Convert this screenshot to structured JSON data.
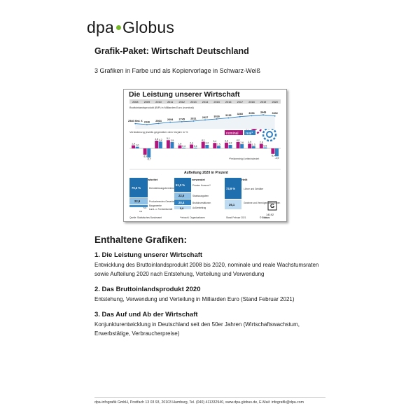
{
  "brand": {
    "part1": "dpa",
    "part2": "Globus"
  },
  "header": {
    "title": "Grafik-Paket: Wirtschaft Deutschland",
    "subtitle": "3 Grafiken in Farbe und als Kopiervorlage in Schwarz-Weiß"
  },
  "preview": {
    "title": "Die Leistung unserer Wirtschaft",
    "gdp_label": "Bruttoinlandsprodukt (BIP) in Milliarden Euro (nominal)",
    "change_label": "Veränderung jeweils gegenüber dem Vorjahr in %",
    "legend_nominal": "nominal",
    "legend_real": "real*",
    "note": "*Preisbereinigt, kettenindexiert",
    "section_title": "Aufteilung 2020 in Prozent",
    "col1_head": "Dort erarbeitet",
    "col2_head": "Dafür verwendet",
    "col3_head": "So verteilt",
    "source": "Quelle: Statistisches Bundesamt",
    "footnote": "**einschl. Organisationen",
    "stand": "Stand Februar 2021",
    "credit": "© Globus",
    "code": "14192",
    "col1": [
      {
        "value": "70,3 %",
        "label": "Dienstleistungsbereiche"
      },
      {
        "value": "22,9",
        "label": "Produzierendes Gewerbe"
      },
      {
        "value": "5,9",
        "label": "Baugewerbe"
      },
      {
        "value": "0,9",
        "label": "Land- u. Forstwirtschaft"
      }
    ],
    "col2": [
      {
        "value": "51,3 %",
        "label": "Privater Konsum**"
      },
      {
        "value": "22,5",
        "label": "Staatsausgaben"
      },
      {
        "value": "20,4",
        "label": "Bruttoinvestitionen"
      },
      {
        "value": "5,8",
        "label": "Außenbeitrag"
      }
    ],
    "col3": [
      {
        "value": "73,9 %",
        "label": "Löhne und Gehälter"
      },
      {
        "value": "26,1",
        "label": "Gewinne und Vermögenseinkommen"
      }
    ]
  },
  "chart_data": {
    "type": "bar",
    "categories": [
      "2008",
      "2009",
      "2010",
      "2011",
      "2012",
      "2013",
      "2014",
      "2015",
      "2016",
      "2017",
      "2018",
      "2019",
      "2020"
    ],
    "gdp_nominal_bn": [
      2546,
      2446,
      2564,
      2694,
      2745,
      2811,
      2927,
      3026,
      3135,
      3260,
      3356,
      3449,
      3332
    ],
    "gdp_first_label": "2546 Mrd. €",
    "series": [
      {
        "name": "nominal",
        "color": "#b0177a",
        "values": [
          1.9,
          -3.9,
          4.8,
          5.1,
          1.9,
          2.4,
          4.1,
          3.4,
          3.6,
          4.0,
          2.9,
          2.8,
          -3.4
        ]
      },
      {
        "name": "real*",
        "color": "#2f7fc1",
        "values": [
          1.0,
          -5.7,
          4.2,
          3.9,
          0.4,
          0.4,
          2.2,
          1.5,
          2.2,
          2.6,
          1.3,
          0.6,
          -4.9
        ]
      }
    ],
    "value_labels": {
      "nominal": [
        "1,9",
        "-3,9",
        "4,8",
        "5,1",
        "1,9",
        "2,4",
        "4,1",
        "3,4",
        "3,6",
        "4,0",
        "2,9",
        "2,8",
        "-3,4"
      ],
      "real": [
        "1,0",
        "-5,7",
        "4,2",
        "3,9",
        "0,4",
        "0,4",
        "2,2",
        "1,5",
        "2,2",
        "2,6",
        "1,3",
        "0,6",
        "-4,9"
      ]
    },
    "colors": {
      "year_band": "#d9d9d9",
      "gdp_line": "#2f7fc1",
      "gdp_area": "#eef3f8",
      "gear_magenta": "#b0177a",
      "gear_blue": "#2f7fc1"
    }
  },
  "contents": {
    "heading": "Enthaltene Grafiken:",
    "items": [
      {
        "title": "1. Die Leistung unserer Wirtschaft",
        "desc": "Entwicklung des Bruttoinlandsprodukt 2008 bis 2020, nominale und reale Wachstumsraten sowie Aufteilung 2020 nach Entstehung, Verteilung und Verwendung"
      },
      {
        "title": "2. Das Bruttoinlandsprodukt 2020",
        "desc": "Entstehung, Verwendung und Verteilung in Milliarden Euro (Stand Februar 2021)"
      },
      {
        "title": "3. Das Auf und Ab der Wirtschaft",
        "desc": "Konjunkturentwicklung in Deutschland seit den 50er Jahren (Wirtschaftswachstum, Erwerbstätige, Verbraucherpreise)"
      }
    ]
  },
  "footer": {
    "text": "dpa-infografik GmbH, Postfach 13 03 93, 20103 Hamburg, Tel. (040) 411332940, www.dpa-globus.de, E-Mail: infografik@dpa.com"
  }
}
